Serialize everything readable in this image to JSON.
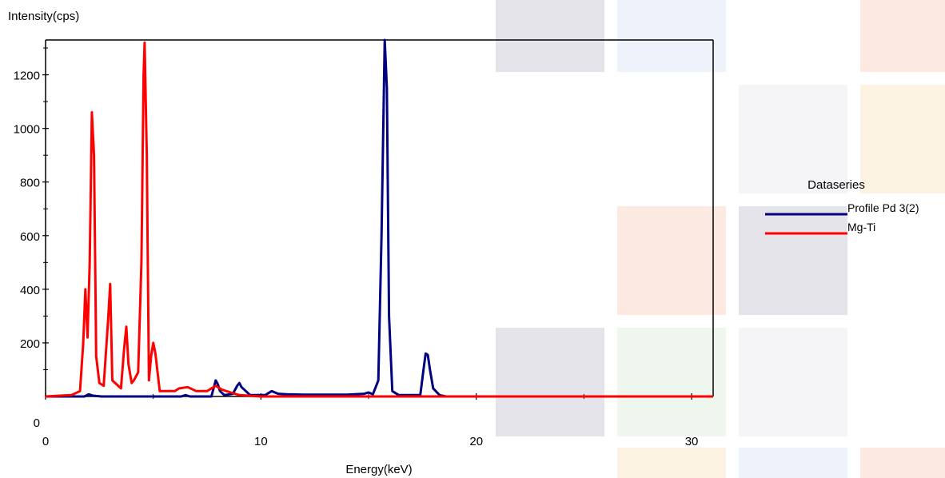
{
  "chart_data": {
    "type": "line",
    "ylabel": "Intensity(cps)",
    "xlabel": "Energy(keV)",
    "xlim": [
      0,
      31
    ],
    "ylim": [
      0,
      1330
    ],
    "x_ticks": [
      0,
      10,
      20,
      30
    ],
    "y_ticks": [
      0,
      200,
      400,
      600,
      800,
      1000,
      1200
    ],
    "grid": false,
    "legend": {
      "title": "Dataseries",
      "placement": "right"
    },
    "series": [
      {
        "name": "Profile Pd 3(2)",
        "color": "#000080",
        "points": [
          [
            0,
            0
          ],
          [
            1.8,
            0
          ],
          [
            2.0,
            8
          ],
          [
            2.2,
            3
          ],
          [
            2.6,
            0
          ],
          [
            6.3,
            0
          ],
          [
            6.5,
            5
          ],
          [
            6.7,
            0
          ],
          [
            7.7,
            0
          ],
          [
            7.9,
            60
          ],
          [
            8.0,
            45
          ],
          [
            8.1,
            20
          ],
          [
            8.3,
            5
          ],
          [
            8.7,
            10
          ],
          [
            8.9,
            40
          ],
          [
            9.0,
            50
          ],
          [
            9.1,
            35
          ],
          [
            9.3,
            20
          ],
          [
            9.5,
            5
          ],
          [
            10.2,
            5
          ],
          [
            10.5,
            20
          ],
          [
            10.8,
            10
          ],
          [
            11.2,
            8
          ],
          [
            12,
            7
          ],
          [
            14,
            7
          ],
          [
            14.8,
            10
          ],
          [
            15.0,
            15
          ],
          [
            15.2,
            8
          ],
          [
            15.45,
            60
          ],
          [
            15.6,
            600
          ],
          [
            15.75,
            1330
          ],
          [
            15.85,
            1150
          ],
          [
            15.95,
            300
          ],
          [
            16.1,
            20
          ],
          [
            16.4,
            5
          ],
          [
            17.4,
            5
          ],
          [
            17.55,
            100
          ],
          [
            17.65,
            160
          ],
          [
            17.75,
            155
          ],
          [
            17.85,
            100
          ],
          [
            18.0,
            30
          ],
          [
            18.3,
            5
          ],
          [
            18.6,
            0
          ],
          [
            31,
            0
          ]
        ]
      },
      {
        "name": "Mg-Ti",
        "color": "#ff0000",
        "points": [
          [
            0,
            0
          ],
          [
            1.2,
            5
          ],
          [
            1.6,
            20
          ],
          [
            1.75,
            200
          ],
          [
            1.85,
            400
          ],
          [
            1.95,
            220
          ],
          [
            2.05,
            500
          ],
          [
            2.15,
            1060
          ],
          [
            2.25,
            900
          ],
          [
            2.35,
            150
          ],
          [
            2.5,
            50
          ],
          [
            2.7,
            40
          ],
          [
            2.9,
            280
          ],
          [
            3.0,
            420
          ],
          [
            3.1,
            60
          ],
          [
            3.3,
            45
          ],
          [
            3.5,
            30
          ],
          [
            3.65,
            180
          ],
          [
            3.75,
            260
          ],
          [
            3.85,
            120
          ],
          [
            4.0,
            50
          ],
          [
            4.1,
            60
          ],
          [
            4.3,
            90
          ],
          [
            4.45,
            500
          ],
          [
            4.55,
            1200
          ],
          [
            4.6,
            1320
          ],
          [
            4.7,
            900
          ],
          [
            4.8,
            60
          ],
          [
            4.9,
            150
          ],
          [
            5.0,
            200
          ],
          [
            5.1,
            160
          ],
          [
            5.3,
            20
          ],
          [
            6.0,
            20
          ],
          [
            6.2,
            30
          ],
          [
            6.6,
            35
          ],
          [
            7.0,
            20
          ],
          [
            7.5,
            20
          ],
          [
            7.9,
            40
          ],
          [
            8.2,
            25
          ],
          [
            8.6,
            15
          ],
          [
            9.0,
            5
          ],
          [
            10,
            0
          ],
          [
            31,
            0
          ]
        ]
      }
    ]
  }
}
